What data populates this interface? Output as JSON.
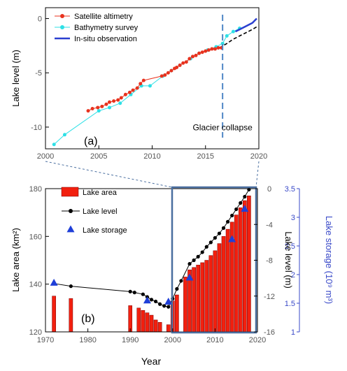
{
  "colors": {
    "satellite": "#e8321e",
    "bathymetry": "#2ee0e6",
    "insitu": "#2a3fd0",
    "dashed_trend": "#000000",
    "collapse_line": "#4f86c6",
    "lake_area": "#f2200f",
    "lake_level": "#000000",
    "lake_storage": "#1f3fd8",
    "highlight_box": "#4a6fa0",
    "storage_axis": "#3949c8"
  },
  "chart_data": [
    {
      "type": "line",
      "panel_label": "(a)",
      "xlabel": "",
      "ylabel": "Lake level (m)",
      "xlim": [
        2000,
        2020
      ],
      "ylim": [
        -12,
        1
      ],
      "x_ticks": [
        2000,
        2005,
        2010,
        2015,
        2020
      ],
      "y_ticks": [
        0,
        -5,
        -10
      ],
      "grid": false,
      "legend": {
        "position": "top-left",
        "entries": [
          "Satellite altimetry",
          "Bathymetry survey",
          "In-situ observation"
        ]
      },
      "annotation": {
        "text": "Glacier collapse",
        "x": 2016.6
      },
      "series": [
        {
          "name": "Satellite altimetry",
          "x": [
            2004.0,
            2004.4,
            2004.9,
            2005.3,
            2005.7,
            2006.0,
            2006.4,
            2006.8,
            2007.1,
            2007.5,
            2007.9,
            2008.2,
            2008.6,
            2008.9,
            2009.2,
            2010.9,
            2011.2,
            2011.5,
            2011.8,
            2012.1,
            2012.3,
            2012.6,
            2012.9,
            2013.2,
            2013.5,
            2013.8,
            2014.1,
            2014.4,
            2014.7,
            2015.0,
            2015.3,
            2015.6,
            2015.9,
            2016.2,
            2016.5
          ],
          "y": [
            -8.5,
            -8.3,
            -8.2,
            -8.1,
            -7.9,
            -7.7,
            -7.6,
            -7.5,
            -7.3,
            -7.0,
            -6.8,
            -6.6,
            -6.4,
            -6.0,
            -5.7,
            -5.3,
            -5.2,
            -5.0,
            -4.8,
            -4.6,
            -4.5,
            -4.3,
            -4.1,
            -4.0,
            -3.7,
            -3.5,
            -3.4,
            -3.2,
            -3.1,
            -3.0,
            -2.9,
            -2.8,
            -2.8,
            -2.7,
            -2.7
          ]
        },
        {
          "name": "Bathymetry survey",
          "x": [
            2000.8,
            2001.8,
            2005.0,
            2006.0,
            2007.0,
            2008.0,
            2009.0,
            2009.8,
            2011.0,
            2011.8,
            2012.6,
            2013.6,
            2014.4,
            2015.2,
            2016.0,
            2016.6,
            2017.0,
            2017.6,
            2018.2
          ],
          "y": [
            -11.6,
            -10.7,
            -8.5,
            -8.2,
            -7.8,
            -7.0,
            -6.2,
            -6.2,
            -5.3,
            -4.8,
            -4.3,
            -3.7,
            -3.2,
            -2.9,
            -2.6,
            -2.3,
            -1.6,
            -1.2,
            -0.9
          ]
        },
        {
          "name": "In-situ observation",
          "x": [
            2017.8,
            2018.2,
            2018.6,
            2019.0,
            2019.4,
            2019.8
          ],
          "y": [
            -1.2,
            -1.0,
            -0.8,
            -0.6,
            -0.4,
            0.0
          ]
        },
        {
          "name": "",
          "style": "dashed",
          "x": [
            2016.3,
            2017.0,
            2017.6,
            2018.2,
            2018.8,
            2019.4,
            2019.9
          ],
          "y": [
            -2.7,
            -2.3,
            -1.9,
            -1.6,
            -1.3,
            -1.0,
            -0.7
          ]
        }
      ]
    },
    {
      "type": "bar",
      "panel_label": "(b)",
      "xlabel": "Year",
      "ylabel": "Lake area (km²)",
      "y2label": "Lake level (m)",
      "y3label": "Lake storage (10⁹ m³)",
      "xlim": [
        1970,
        2020
      ],
      "ylim": [
        120,
        180
      ],
      "y2lim": [
        -16,
        0
      ],
      "y3lim": [
        1,
        3.5
      ],
      "x_ticks": [
        1970,
        1980,
        1990,
        2000,
        2010,
        2020
      ],
      "y_ticks": [
        120,
        140,
        160,
        180
      ],
      "y2_ticks": [
        0,
        -4,
        -8,
        -12,
        -16
      ],
      "y3_ticks": [
        1,
        1.5,
        2,
        2.5,
        3,
        3.5
      ],
      "grid": false,
      "legend": {
        "position": "top-left",
        "entries": [
          "Lake area",
          "Lake level",
          "Lake storage"
        ]
      },
      "series": [
        {
          "name": "Lake area",
          "x": [
            1972,
            1976,
            1990,
            1992,
            1993,
            1994,
            1995,
            1996,
            1997,
            1999,
            2000,
            2001,
            2003,
            2004,
            2005,
            2006,
            2007,
            2008,
            2009,
            2010,
            2011,
            2012,
            2013,
            2014,
            2015,
            2016,
            2017,
            2018
          ],
          "values": [
            135,
            134,
            131,
            130,
            129,
            128,
            127,
            125,
            124,
            123,
            133,
            135.5,
            143,
            146,
            147,
            148,
            149,
            150,
            152,
            154,
            157,
            160,
            163,
            166,
            169,
            172,
            175,
            177
          ]
        },
        {
          "name": "Lake level",
          "axis": "y2",
          "x": [
            1972,
            1976,
            1990,
            1991,
            1993,
            1994,
            1995,
            1996,
            1997,
            1998,
            1999,
            2000,
            2001,
            2002,
            2004,
            2005,
            2006,
            2007,
            2008,
            2009,
            2010,
            2011,
            2012,
            2013,
            2014,
            2015,
            2016,
            2017,
            2018
          ],
          "values": [
            -10.6,
            -10.9,
            -11.5,
            -11.6,
            -11.8,
            -12.1,
            -12.4,
            -12.6,
            -12.9,
            -13.1,
            -13.2,
            -12.3,
            -11.2,
            -10.3,
            -8.4,
            -8.0,
            -7.6,
            -7.1,
            -6.5,
            -6.0,
            -5.5,
            -5.0,
            -4.4,
            -3.7,
            -3.0,
            -2.3,
            -1.6,
            -0.9,
            -0.1
          ]
        },
        {
          "name": "Lake storage",
          "axis": "y3",
          "x": [
            1972,
            1994,
            1999,
            2004,
            2014,
            2017
          ],
          "values": [
            1.86,
            1.55,
            1.53,
            1.95,
            2.62,
            3.15
          ]
        }
      ]
    }
  ]
}
